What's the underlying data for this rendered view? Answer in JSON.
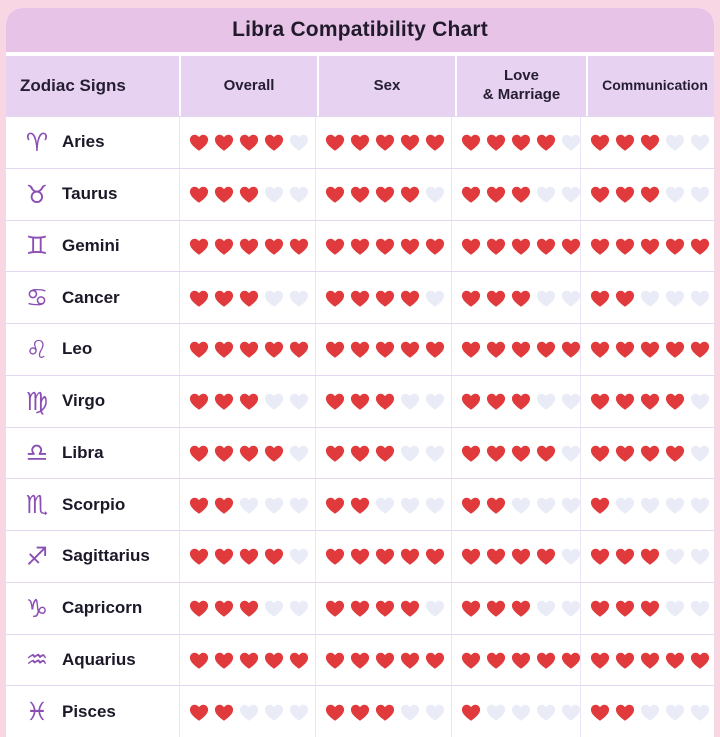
{
  "title": "Libra Compatibility Chart",
  "header": {
    "zodiac_signs": "Zodiac Signs",
    "overall": "Overall",
    "sex": "Sex",
    "love_line": "Love",
    "marriage_line": "& Marriage",
    "communication": "Communication"
  },
  "max_hearts": 5,
  "colors": {
    "page_bg": "#f9d6e4",
    "title_band": "#e8c3e8",
    "header_band": "#e8d2f1",
    "heart_filled": "#e03a3c",
    "heart_empty": "#e9ebf7",
    "zodiac_purple": "#8b4fb4",
    "text_dark": "#241e31"
  },
  "rows": [
    {
      "sign": "Aries",
      "symbol": "♈",
      "ratings": {
        "overall": 4,
        "sex": 5,
        "love_marriage": 4,
        "communication": 3
      }
    },
    {
      "sign": "Taurus",
      "symbol": "♉",
      "ratings": {
        "overall": 3,
        "sex": 4,
        "love_marriage": 3,
        "communication": 3
      }
    },
    {
      "sign": "Gemini",
      "symbol": "♊",
      "ratings": {
        "overall": 5,
        "sex": 5,
        "love_marriage": 5,
        "communication": 5
      }
    },
    {
      "sign": "Cancer",
      "symbol": "♋",
      "ratings": {
        "overall": 3,
        "sex": 4,
        "love_marriage": 3,
        "communication": 2
      }
    },
    {
      "sign": "Leo",
      "symbol": "♌",
      "ratings": {
        "overall": 5,
        "sex": 5,
        "love_marriage": 5,
        "communication": 5
      }
    },
    {
      "sign": "Virgo",
      "symbol": "♍",
      "ratings": {
        "overall": 3,
        "sex": 3,
        "love_marriage": 3,
        "communication": 4
      }
    },
    {
      "sign": "Libra",
      "symbol": "♎",
      "ratings": {
        "overall": 4,
        "sex": 3,
        "love_marriage": 4,
        "communication": 4
      }
    },
    {
      "sign": "Scorpio",
      "symbol": "♏",
      "ratings": {
        "overall": 2,
        "sex": 2,
        "love_marriage": 2,
        "communication": 1
      }
    },
    {
      "sign": "Sagittarius",
      "symbol": "♐",
      "ratings": {
        "overall": 4,
        "sex": 5,
        "love_marriage": 4,
        "communication": 3
      }
    },
    {
      "sign": "Capricorn",
      "symbol": "♑",
      "ratings": {
        "overall": 3,
        "sex": 4,
        "love_marriage": 3,
        "communication": 3
      }
    },
    {
      "sign": "Aquarius",
      "symbol": "♒",
      "ratings": {
        "overall": 5,
        "sex": 5,
        "love_marriage": 5,
        "communication": 5
      }
    },
    {
      "sign": "Pisces",
      "symbol": "♓",
      "ratings": {
        "overall": 2,
        "sex": 3,
        "love_marriage": 1,
        "communication": 2
      }
    }
  ],
  "chart_data": {
    "type": "table",
    "title": "Libra Compatibility Chart",
    "columns": [
      "Zodiac Signs",
      "Overall",
      "Sex",
      "Love & Marriage",
      "Communication"
    ],
    "rating_unit": "hearts",
    "rating_max": 5,
    "rows": [
      [
        "Aries",
        4,
        5,
        4,
        3
      ],
      [
        "Taurus",
        3,
        4,
        3,
        3
      ],
      [
        "Gemini",
        5,
        5,
        5,
        5
      ],
      [
        "Cancer",
        3,
        4,
        3,
        2
      ],
      [
        "Leo",
        5,
        5,
        5,
        5
      ],
      [
        "Virgo",
        3,
        3,
        3,
        4
      ],
      [
        "Libra",
        4,
        3,
        4,
        4
      ],
      [
        "Scorpio",
        2,
        2,
        2,
        1
      ],
      [
        "Sagittarius",
        4,
        5,
        4,
        3
      ],
      [
        "Capricorn",
        3,
        4,
        3,
        3
      ],
      [
        "Aquarius",
        5,
        5,
        5,
        5
      ],
      [
        "Pisces",
        2,
        3,
        1,
        2
      ]
    ]
  }
}
